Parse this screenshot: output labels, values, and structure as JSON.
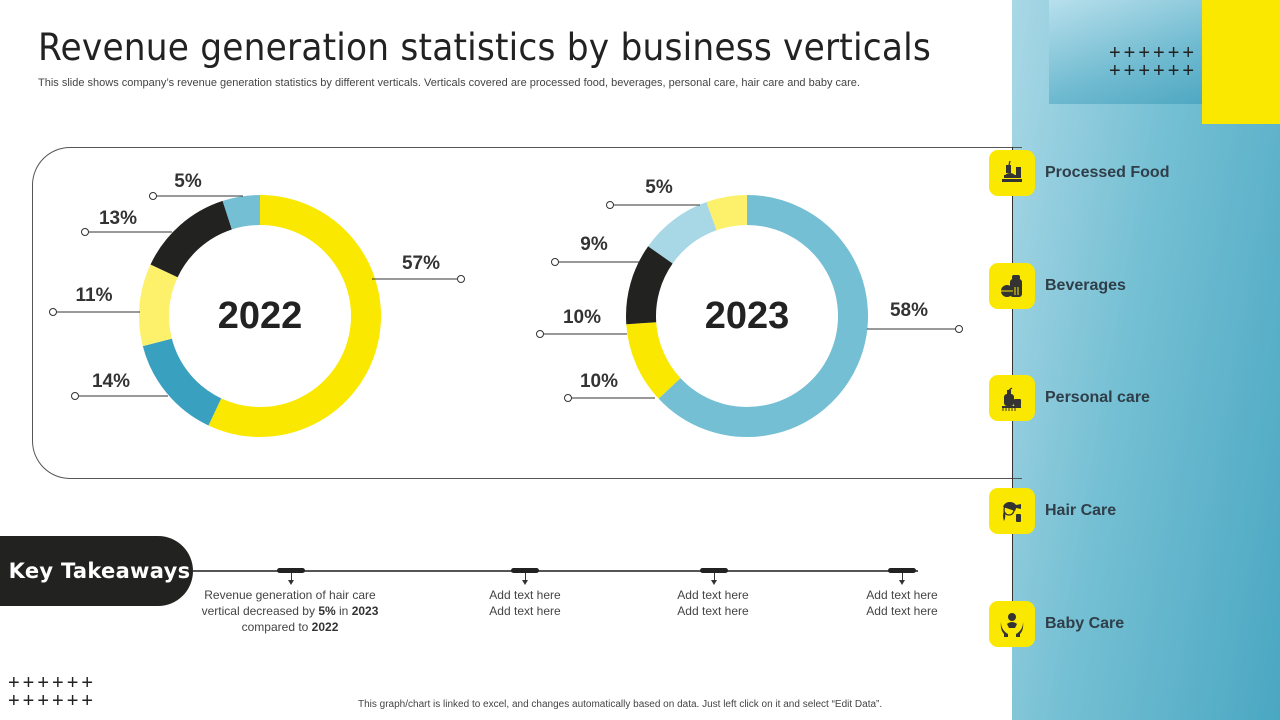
{
  "header": {
    "title": "Revenue generation statistics by business verticals",
    "subtitle": "This slide shows company’s revenue generation statistics by different verticals. Verticals covered are processed food, beverages, personal care, hair care and baby care."
  },
  "colors": {
    "yellow": "#fae800",
    "light_yellow": "#fdf06a",
    "black": "#222220",
    "teal": "#3aa0bf",
    "light_blue": "#74bfd4",
    "pale_blue": "#a8d8e6",
    "panel": "#74bfd3"
  },
  "chart_data": [
    {
      "type": "pie",
      "variant": "donut",
      "title": "2022",
      "center_label": "2022",
      "direction": "clockwise-from-top",
      "segments": [
        {
          "label": "57%",
          "value": 57,
          "color": "#fae800"
        },
        {
          "label": "14%",
          "value": 14,
          "color": "#3aa0bf"
        },
        {
          "label": "11%",
          "value": 11,
          "color": "#fdf06a"
        },
        {
          "label": "13%",
          "value": 13,
          "color": "#222220"
        },
        {
          "label": "5%",
          "value": 5,
          "color": "#74bfd4"
        }
      ]
    },
    {
      "type": "pie",
      "variant": "donut",
      "title": "2023",
      "center_label": "2023",
      "direction": "clockwise-from-top",
      "segments": [
        {
          "label": "58%",
          "value": 58,
          "color": "#74bfd4"
        },
        {
          "label": "10%",
          "value": 10,
          "color": "#fae800"
        },
        {
          "label": "10%",
          "value": 10,
          "color": "#222220"
        },
        {
          "label": "9%",
          "value": 9,
          "color": "#a8d8e6"
        },
        {
          "label": "5%",
          "value": 5,
          "color": "#fdf06a"
        }
      ]
    }
  ],
  "legend": [
    {
      "label": "Processed Food",
      "icon": "processed-food-icon"
    },
    {
      "label": "Beverages",
      "icon": "beverages-icon"
    },
    {
      "label": "Personal care",
      "icon": "personal-care-icon"
    },
    {
      "label": "Hair Care",
      "icon": "hair-care-icon"
    },
    {
      "label": "Baby Care",
      "icon": "baby-care-icon"
    }
  ],
  "key_takeaways": {
    "label": "Key Takeaways",
    "items": [
      {
        "parts": [
          "Revenue  generation  of hair care vertical  decreased  by ",
          "5%",
          " in ",
          "2023",
          " compared  to ",
          "2022"
        ]
      },
      {
        "line1": "Add text here",
        "line2": "Add text here"
      },
      {
        "line1": "Add text here",
        "line2": "Add text here"
      },
      {
        "line1": "Add text here",
        "line2": "Add text here"
      }
    ]
  },
  "decor": {
    "plus_row": "++++++"
  },
  "footer": "This graph/chart is linked to excel, and changes automatically based on data. Just left click on it and select “Edit Data”."
}
